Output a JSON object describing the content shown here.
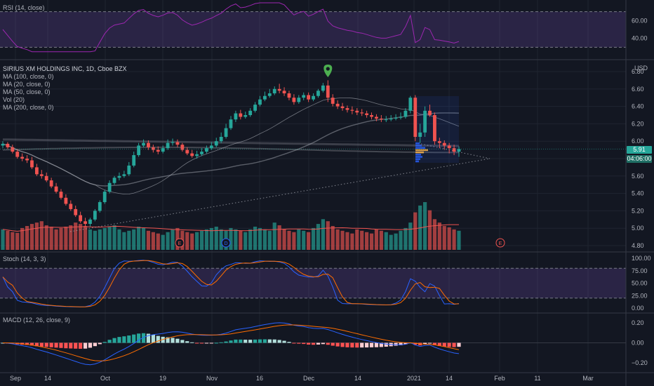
{
  "colors": {
    "background": "#131722",
    "grid": "#1f2430",
    "separator": "#363a45",
    "up": "#26a69a",
    "down": "#ef5350",
    "ma_light": "#b2b5be",
    "rsi": "#9c27b0",
    "stoch_k": "#2962ff",
    "stoch_d": "#ff6d00",
    "band_fill": "rgba(126,87,194,0.22)",
    "pin": "#4caf50"
  },
  "panes": {
    "rsi": {
      "label": "RSI (14, close)",
      "ticks": [
        "60.00",
        "40.00"
      ]
    },
    "main": {
      "title": "SIRIUS XM HOLDINGS INC, 1D, Cboe BZX",
      "indicators": [
        "MA (100, close, 0)",
        "MA (20, close, 0)",
        "MA (50, close, 0)",
        "Vol (20)",
        "MA (200, close, 0)"
      ],
      "currency": "USD",
      "ticks": [
        "6.80",
        "6.60",
        "6.40",
        "6.20",
        "6.00",
        "5.80",
        "5.60",
        "5.40",
        "5.20",
        "5.00",
        "4.80"
      ],
      "last_price": "5.91",
      "countdown": "04:06:00",
      "event_markers": [
        {
          "label": "E",
          "kind": "earnings"
        },
        {
          "label": "D",
          "kind": "dividend"
        },
        {
          "label": "E",
          "kind": "earnings-upcoming"
        }
      ]
    },
    "stoch": {
      "label": "Stoch (14, 3, 3)",
      "ticks": [
        "100.00",
        "75.00",
        "50.00",
        "25.00",
        "0.00"
      ]
    },
    "macd": {
      "label": "MACD (12, 26, close, 9)",
      "ticks": [
        "0.20",
        "0.00",
        "−0.20"
      ]
    }
  },
  "xaxis": {
    "labels": [
      "Sep",
      "14",
      "Oct",
      "19",
      "Nov",
      "16",
      "Dec",
      "14",
      "2021",
      "14",
      "Feb",
      "11",
      "Mar"
    ]
  },
  "chart_data": {
    "type": "candlestick",
    "symbol": "SIRIUS XM HOLDINGS INC",
    "timeframe": "1D",
    "exchange": "Cboe BZX",
    "ylim": [
      4.8,
      6.8
    ],
    "x": [
      "2020-09-01",
      "2020-09-02",
      "2020-09-03",
      "2020-09-04",
      "2020-09-08",
      "2020-09-09",
      "2020-09-10",
      "2020-09-11",
      "2020-09-14",
      "2020-09-15",
      "2020-09-16",
      "2020-09-17",
      "2020-09-18",
      "2020-09-21",
      "2020-09-22",
      "2020-09-23",
      "2020-09-24",
      "2020-09-25",
      "2020-09-28",
      "2020-09-29",
      "2020-09-30",
      "2020-10-01",
      "2020-10-02",
      "2020-10-05",
      "2020-10-06",
      "2020-10-07",
      "2020-10-08",
      "2020-10-09",
      "2020-10-12",
      "2020-10-13",
      "2020-10-14",
      "2020-10-15",
      "2020-10-16",
      "2020-10-19",
      "2020-10-20",
      "2020-10-21",
      "2020-10-22",
      "2020-10-23",
      "2020-10-26",
      "2020-10-27",
      "2020-10-28",
      "2020-10-29",
      "2020-10-30",
      "2020-11-02",
      "2020-11-03",
      "2020-11-04",
      "2020-11-05",
      "2020-11-06",
      "2020-11-09",
      "2020-11-10",
      "2020-11-11",
      "2020-11-12",
      "2020-11-13",
      "2020-11-16",
      "2020-11-17",
      "2020-11-18",
      "2020-11-19",
      "2020-11-20",
      "2020-11-23",
      "2020-11-24",
      "2020-11-25",
      "2020-11-27",
      "2020-11-30",
      "2020-12-01",
      "2020-12-02",
      "2020-12-03",
      "2020-12-04",
      "2020-12-07",
      "2020-12-08",
      "2020-12-09",
      "2020-12-10",
      "2020-12-11",
      "2020-12-14",
      "2020-12-15",
      "2020-12-16",
      "2020-12-17",
      "2020-12-18",
      "2020-12-21",
      "2020-12-22",
      "2020-12-23",
      "2020-12-24",
      "2020-12-28",
      "2020-12-29",
      "2020-12-30",
      "2020-12-31",
      "2021-01-04",
      "2021-01-05",
      "2021-01-06",
      "2021-01-07",
      "2021-01-08",
      "2021-01-11",
      "2021-01-12",
      "2021-01-13",
      "2021-01-14",
      "2021-01-15"
    ],
    "open": [
      5.95,
      5.97,
      5.93,
      5.88,
      5.82,
      5.8,
      5.78,
      5.7,
      5.62,
      5.6,
      5.55,
      5.48,
      5.42,
      5.35,
      5.28,
      5.22,
      5.15,
      5.08,
      5.05,
      5.1,
      5.2,
      5.3,
      5.42,
      5.52,
      5.58,
      5.6,
      5.62,
      5.72,
      5.84,
      5.95,
      5.98,
      5.93,
      5.9,
      5.88,
      5.92,
      5.98,
      5.99,
      5.96,
      5.9,
      5.86,
      5.83,
      5.85,
      5.88,
      5.92,
      5.95,
      6.0,
      6.05,
      6.15,
      6.25,
      6.32,
      6.28,
      6.3,
      6.35,
      6.42,
      6.48,
      6.52,
      6.55,
      6.6,
      6.58,
      6.55,
      6.5,
      6.45,
      6.5,
      6.53,
      6.48,
      6.52,
      6.58,
      6.64,
      6.5,
      6.43,
      6.4,
      6.38,
      6.36,
      6.35,
      6.33,
      6.32,
      6.3,
      6.28,
      6.26,
      6.25,
      6.25,
      6.26,
      6.27,
      6.28,
      6.35,
      6.5,
      6.05,
      6.1,
      6.35,
      6.3,
      6.0,
      5.98,
      5.95,
      5.92,
      5.88
    ],
    "high": [
      6.0,
      5.99,
      5.96,
      5.91,
      5.86,
      5.84,
      5.82,
      5.74,
      5.67,
      5.64,
      5.58,
      5.52,
      5.45,
      5.39,
      5.32,
      5.26,
      5.19,
      5.12,
      5.12,
      5.22,
      5.32,
      5.44,
      5.55,
      5.6,
      5.64,
      5.66,
      5.76,
      5.88,
      5.98,
      6.02,
      6.01,
      5.96,
      5.94,
      5.95,
      6.02,
      6.03,
      6.02,
      5.98,
      5.93,
      5.9,
      5.89,
      5.92,
      5.95,
      5.99,
      6.04,
      6.1,
      6.2,
      6.29,
      6.35,
      6.36,
      6.34,
      6.38,
      6.45,
      6.52,
      6.57,
      6.6,
      6.63,
      6.66,
      6.62,
      6.58,
      6.54,
      6.53,
      6.56,
      6.56,
      6.55,
      6.6,
      6.67,
      6.7,
      6.54,
      6.47,
      6.44,
      6.41,
      6.4,
      6.38,
      6.37,
      6.35,
      6.33,
      6.31,
      6.3,
      6.29,
      6.3,
      6.31,
      6.33,
      6.38,
      6.52,
      6.53,
      6.2,
      6.4,
      6.42,
      6.33,
      6.04,
      6.01,
      5.98,
      5.96,
      5.94
    ],
    "low": [
      5.92,
      5.91,
      5.86,
      5.8,
      5.77,
      5.75,
      5.68,
      5.6,
      5.57,
      5.53,
      5.46,
      5.4,
      5.33,
      5.26,
      5.2,
      5.13,
      5.06,
      5.02,
      5.02,
      5.08,
      5.18,
      5.28,
      5.4,
      5.5,
      5.55,
      5.58,
      5.6,
      5.7,
      5.82,
      5.93,
      5.9,
      5.87,
      5.85,
      5.86,
      5.9,
      5.95,
      5.93,
      5.88,
      5.84,
      5.81,
      5.8,
      5.83,
      5.86,
      5.9,
      5.93,
      5.98,
      6.03,
      6.13,
      6.22,
      6.25,
      6.26,
      6.28,
      6.33,
      6.4,
      6.46,
      6.5,
      6.53,
      6.55,
      6.52,
      6.47,
      6.42,
      6.43,
      6.47,
      6.45,
      6.46,
      6.5,
      6.56,
      6.45,
      6.4,
      6.37,
      6.35,
      6.33,
      6.31,
      6.3,
      6.29,
      6.27,
      6.25,
      6.23,
      6.22,
      6.22,
      6.23,
      6.24,
      6.25,
      6.26,
      6.32,
      6.0,
      5.98,
      6.05,
      6.28,
      5.96,
      5.92,
      5.9,
      5.86,
      5.84,
      5.82
    ],
    "close": [
      5.97,
      5.93,
      5.88,
      5.82,
      5.8,
      5.78,
      5.7,
      5.62,
      5.6,
      5.55,
      5.48,
      5.42,
      5.35,
      5.28,
      5.22,
      5.15,
      5.08,
      5.05,
      5.1,
      5.2,
      5.3,
      5.42,
      5.52,
      5.58,
      5.6,
      5.62,
      5.72,
      5.84,
      5.95,
      5.98,
      5.93,
      5.9,
      5.88,
      5.92,
      5.98,
      5.99,
      5.96,
      5.9,
      5.86,
      5.83,
      5.85,
      5.88,
      5.92,
      5.95,
      6.0,
      6.05,
      6.15,
      6.25,
      6.32,
      6.28,
      6.3,
      6.35,
      6.42,
      6.48,
      6.52,
      6.55,
      6.6,
      6.58,
      6.55,
      6.5,
      6.45,
      6.5,
      6.53,
      6.48,
      6.52,
      6.58,
      6.64,
      6.5,
      6.43,
      6.4,
      6.38,
      6.36,
      6.35,
      6.33,
      6.32,
      6.3,
      6.28,
      6.26,
      6.25,
      6.25,
      6.26,
      6.27,
      6.28,
      6.35,
      6.5,
      6.05,
      6.1,
      6.35,
      6.3,
      6.0,
      5.98,
      5.95,
      5.92,
      5.88,
      5.91
    ],
    "volume": [
      30,
      28,
      26,
      25,
      32,
      35,
      38,
      40,
      42,
      36,
      34,
      30,
      32,
      34,
      36,
      40,
      38,
      35,
      30,
      28,
      30,
      32,
      34,
      36,
      30,
      26,
      28,
      30,
      34,
      32,
      28,
      26,
      24,
      22,
      26,
      30,
      32,
      28,
      26,
      24,
      26,
      28,
      30,
      32,
      34,
      30,
      28,
      32,
      30,
      28,
      26,
      30,
      34,
      32,
      30,
      28,
      40,
      36,
      30,
      28,
      26,
      30,
      28,
      26,
      32,
      38,
      45,
      42,
      35,
      30,
      28,
      26,
      24,
      30,
      28,
      26,
      24,
      30,
      28,
      26,
      22,
      24,
      28,
      32,
      40,
      55,
      65,
      70,
      58,
      45,
      40,
      35,
      33,
      30,
      28
    ],
    "ma_labels": [
      "MA 20",
      "MA 50",
      "MA 100",
      "MA 200"
    ],
    "rsi_range": [
      30,
      70
    ],
    "stoch_band": [
      20,
      80
    ],
    "macd_range": [
      -0.25,
      0.25
    ]
  }
}
